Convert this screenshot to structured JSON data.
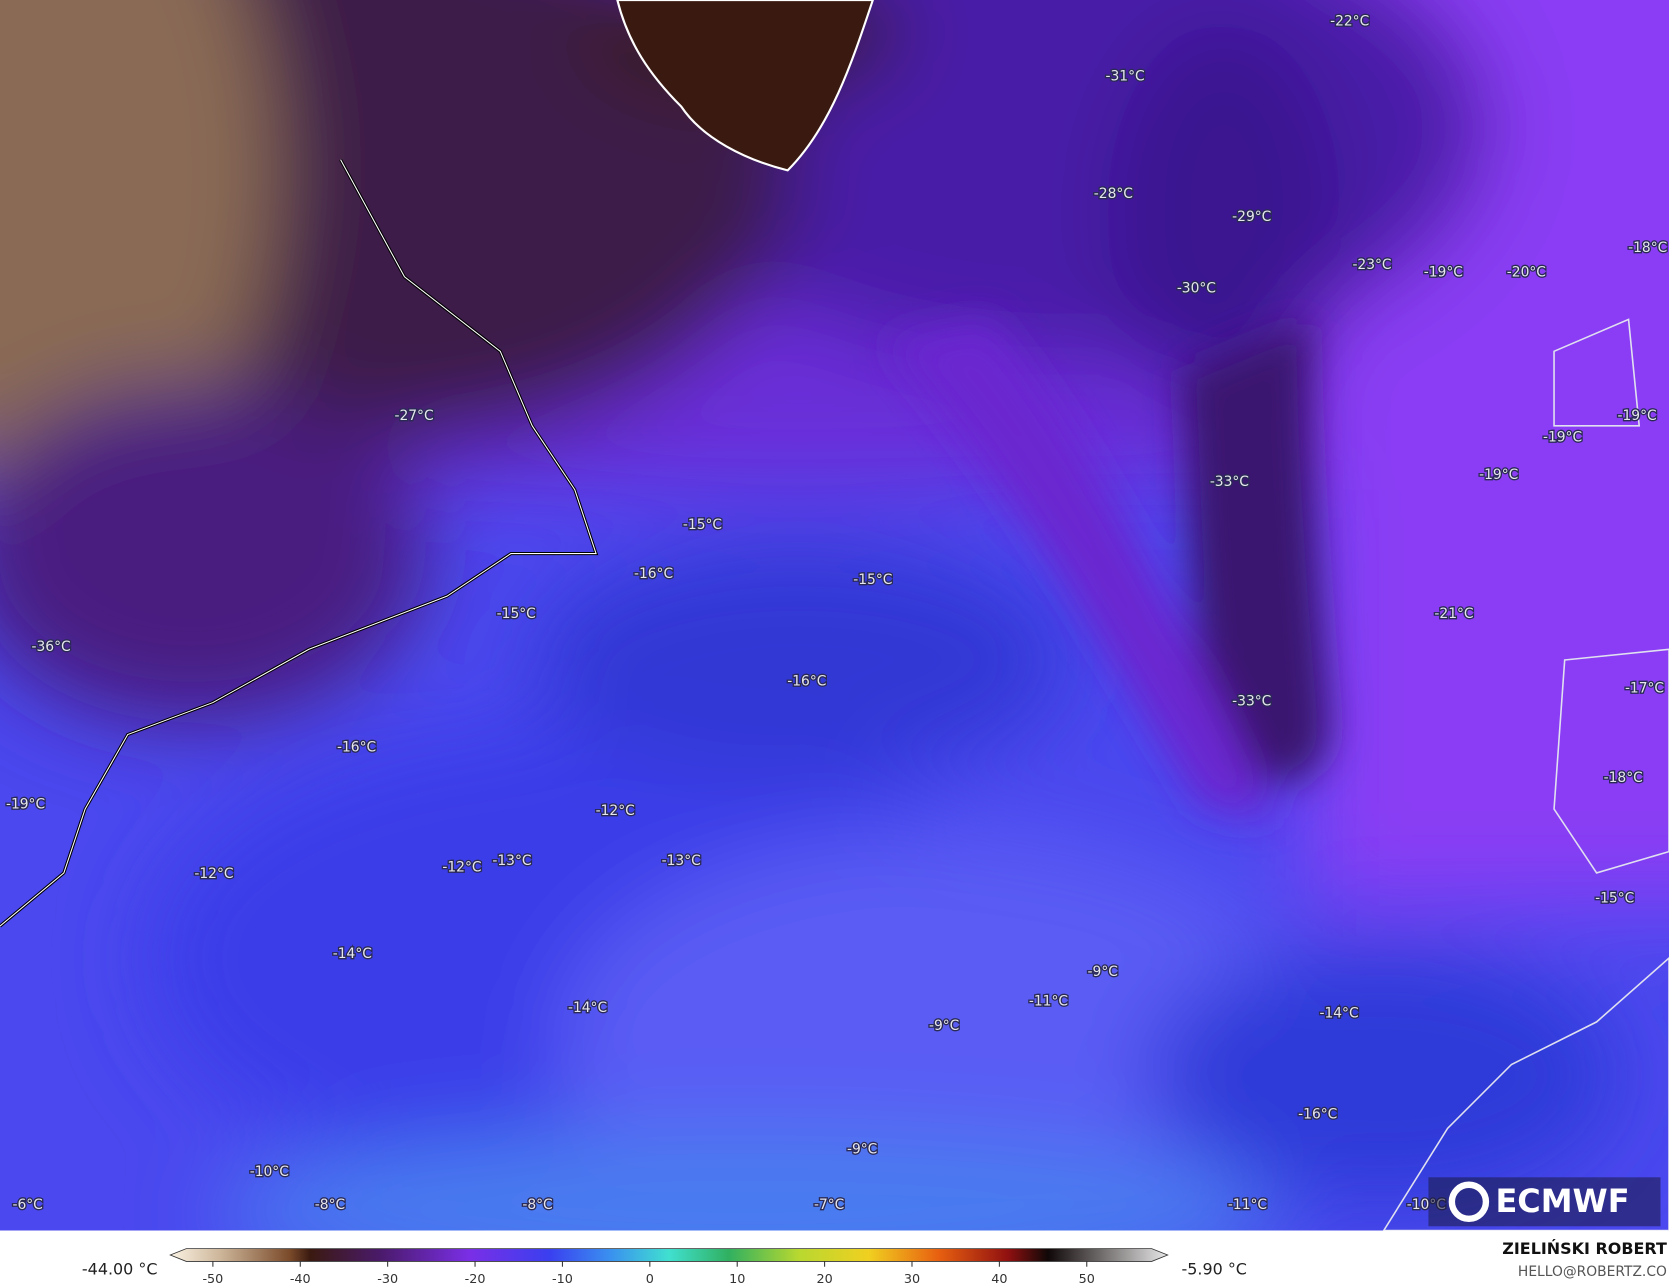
{
  "map": {
    "labels": [
      "-22°C",
      "-31°C",
      "-28°C",
      "-29°C",
      "-23°C",
      "-19°C",
      "-20°C",
      "-18°C",
      "-30°C",
      "-27°C",
      "-33°C",
      "-19°C",
      "-19°C",
      "-19°C",
      "-15°C",
      "-16°C",
      "-15°C",
      "-15°C",
      "-21°C",
      "-36°C",
      "-16°C",
      "-33°C",
      "-17°C",
      "-16°C",
      "-18°C",
      "-19°C",
      "-12°C",
      "-12°C",
      "-12°C",
      "-13°C",
      "-13°C",
      "-15°C",
      "-14°C",
      "-9°C",
      "-11°C",
      "-14°C",
      "-14°C",
      "-9°C",
      "-16°C",
      "-9°C",
      "-10°C",
      "-6°C",
      "-8°C",
      "-8°C",
      "-7°C",
      "-11°C",
      "-10°C"
    ]
  },
  "logo": "ECMWF",
  "colorbar": {
    "min_label": "-44.00 °C",
    "max_label": "-5.90 °C",
    "ticks": [
      -50,
      -40,
      -30,
      -20,
      -10,
      0,
      10,
      20,
      30,
      40,
      50
    ]
  },
  "credit": {
    "name": "ZIELIŃSKI ROBERT",
    "email": "HELLO@ROBERTZ.CO"
  }
}
